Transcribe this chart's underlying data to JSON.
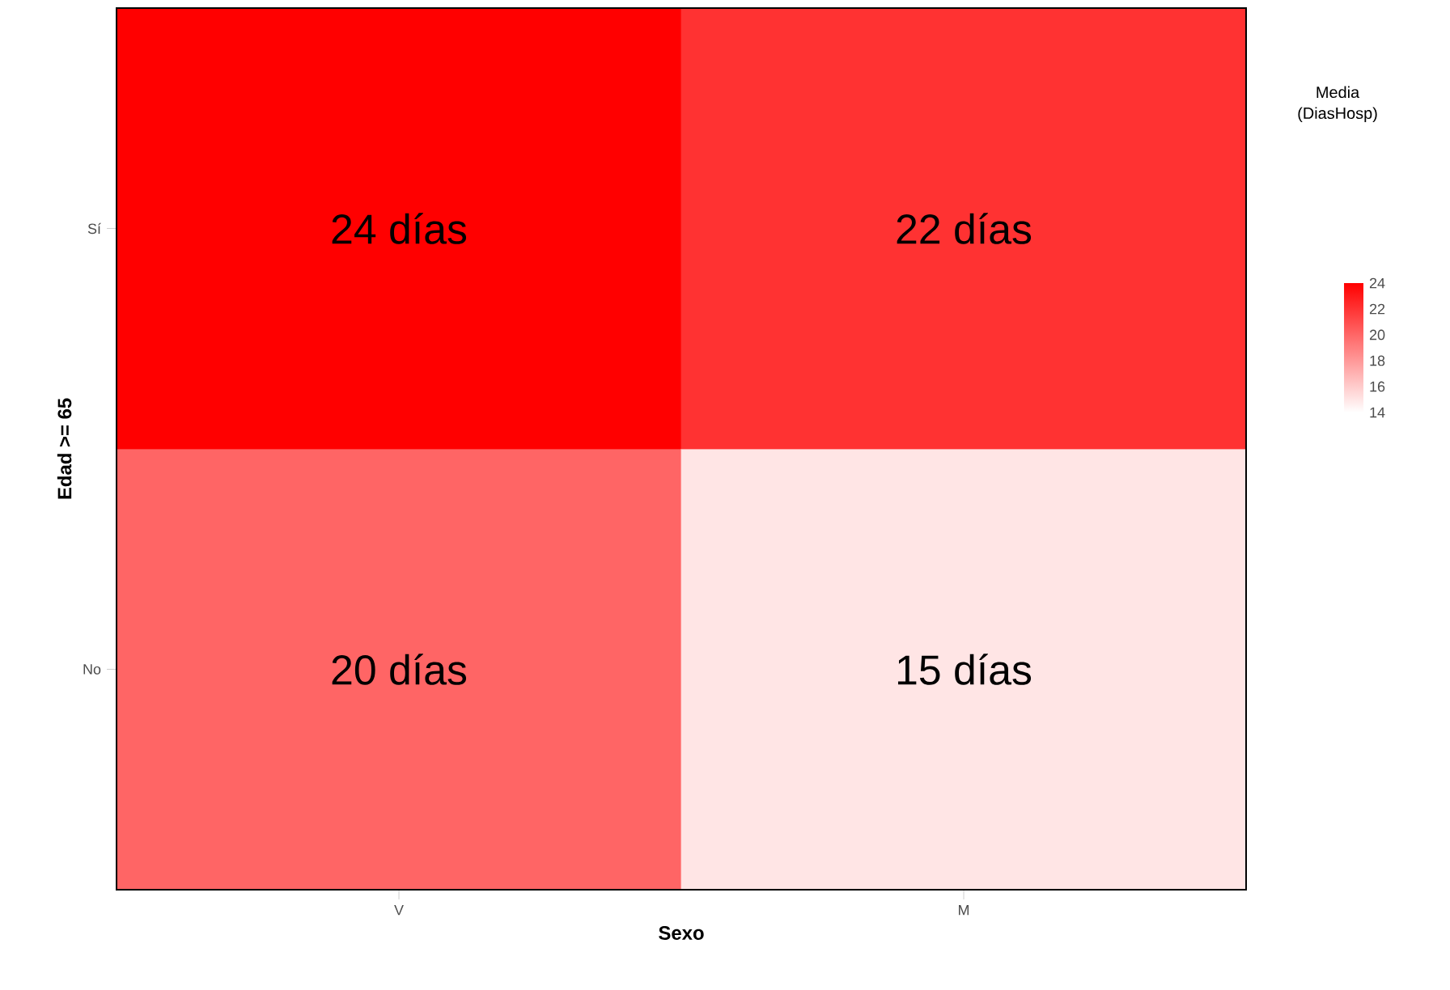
{
  "chart_data": {
    "type": "heatmap",
    "xlabel": "Sexo",
    "ylabel": "Edad >= 65",
    "clabel": "Media (DiasHosp)",
    "categories": [
      "V",
      "M"
    ],
    "y_categories": [
      "Sí",
      "No"
    ],
    "cells": [
      [
        24,
        22
      ],
      [
        20,
        15
      ]
    ],
    "cell_labels": [
      [
        "24 días",
        "22 días"
      ],
      [
        "20 días",
        "15 días"
      ]
    ],
    "clim": [
      14,
      24
    ],
    "cticks": [
      24,
      22,
      20,
      18,
      16,
      14
    ]
  }
}
